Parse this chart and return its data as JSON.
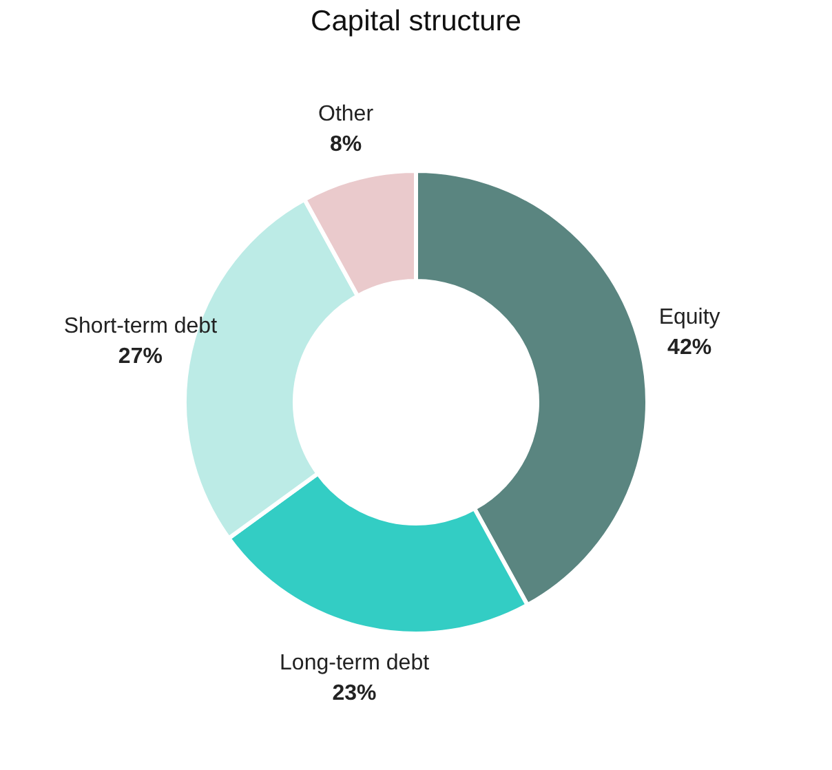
{
  "chart_data": {
    "type": "donut",
    "title": "Capital structure",
    "categories": [
      "Equity",
      "Long-term debt",
      "Short-term debt",
      "Other"
    ],
    "values": [
      42,
      23,
      27,
      8
    ],
    "value_labels": [
      "42%",
      "23%",
      "27%",
      "8%"
    ],
    "colors": [
      "#5a8580",
      "#33cdc4",
      "#bcebe6",
      "#eacacc"
    ],
    "legend": false
  }
}
